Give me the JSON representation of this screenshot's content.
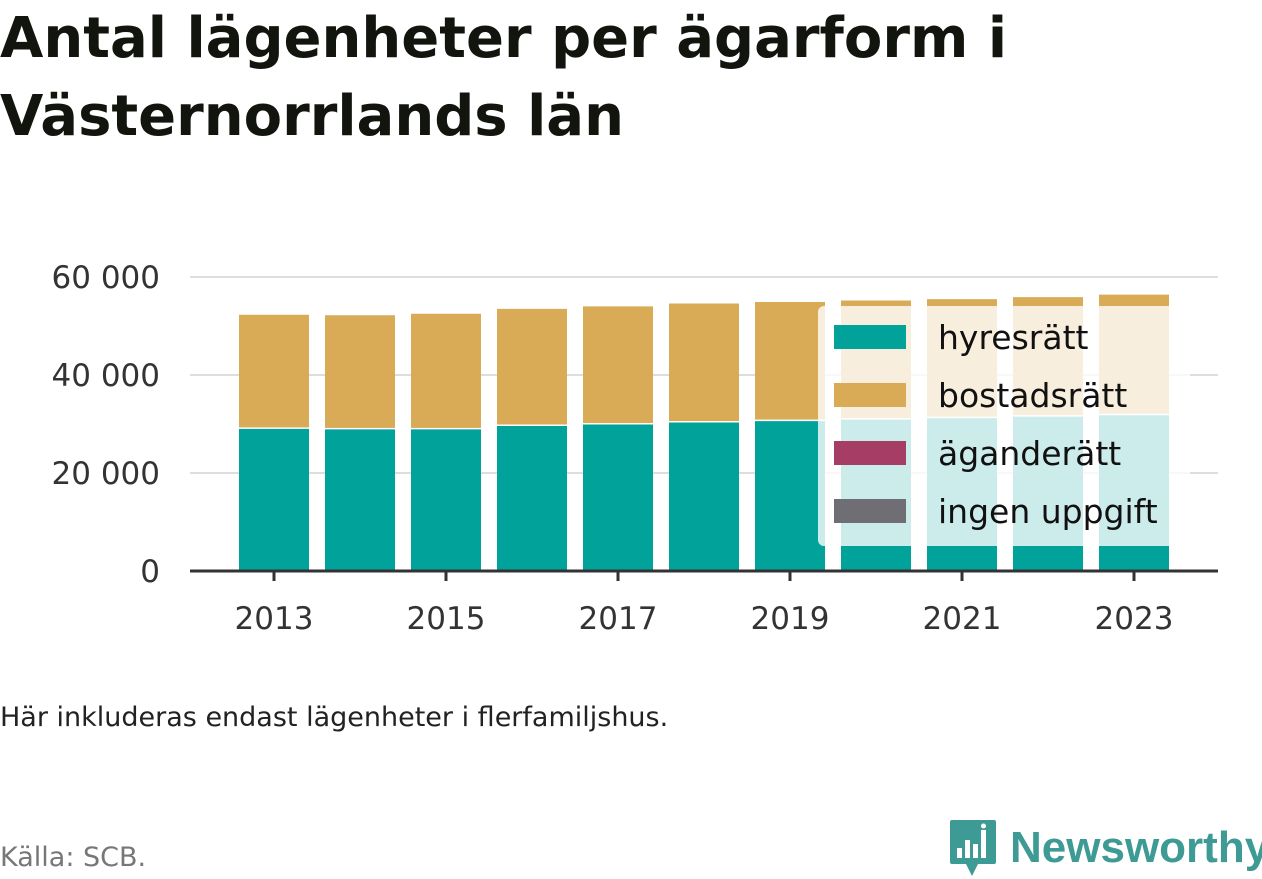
{
  "title": "Antal lägenheter per ägarform i Västernorrlands län",
  "note": "Här inkluderas endast lägenheter i flerfamiljshus.",
  "source": "Källa: SCB.",
  "brand": {
    "name": "Newsworthy",
    "icon": "bar-chart-speech-bubble-icon",
    "color": "#3e9a94"
  },
  "colors": {
    "hyresratt": "#00a29a",
    "bostadsratt": "#d9ab57",
    "aganderatt": "#a63d64",
    "ingen_uppgift": "#6e6e74",
    "grid": "#dddddd",
    "axis": "#333333"
  },
  "chart_data": {
    "type": "bar",
    "stacked": true,
    "categories": [
      "2013",
      "2014",
      "2015",
      "2016",
      "2017",
      "2018",
      "2019",
      "2020",
      "2021",
      "2022",
      "2023"
    ],
    "x_tick_labels": [
      "2013",
      "2015",
      "2017",
      "2019",
      "2021",
      "2023"
    ],
    "y_tick_labels": [
      "0",
      "20 000",
      "40 000",
      "60 000"
    ],
    "y_ticks": [
      0,
      20000,
      40000,
      60000
    ],
    "ylim": [
      0,
      60000
    ],
    "grid": true,
    "legend": {
      "placement": "right",
      "entries": [
        "hyresrätt",
        "bostadsrätt",
        "äganderätt",
        "ingen uppgift"
      ]
    },
    "series": [
      {
        "name": "hyresrätt",
        "color": "#00a29a",
        "values": [
          29300,
          29200,
          29200,
          29900,
          30200,
          30600,
          30900,
          31200,
          31500,
          31800,
          32100
        ]
      },
      {
        "name": "bostadsrätt",
        "color": "#d9ab57",
        "values": [
          23300,
          23300,
          23600,
          23900,
          24100,
          24300,
          24300,
          24300,
          24300,
          24400,
          24600
        ]
      },
      {
        "name": "äganderätt",
        "color": "#a63d64",
        "values": [
          0,
          0,
          0,
          0,
          0,
          0,
          0,
          0,
          0,
          0,
          0
        ]
      },
      {
        "name": "ingen uppgift",
        "color": "#6e6e74",
        "values": [
          0,
          0,
          0,
          0,
          0,
          0,
          0,
          0,
          0,
          0,
          0
        ]
      }
    ]
  }
}
